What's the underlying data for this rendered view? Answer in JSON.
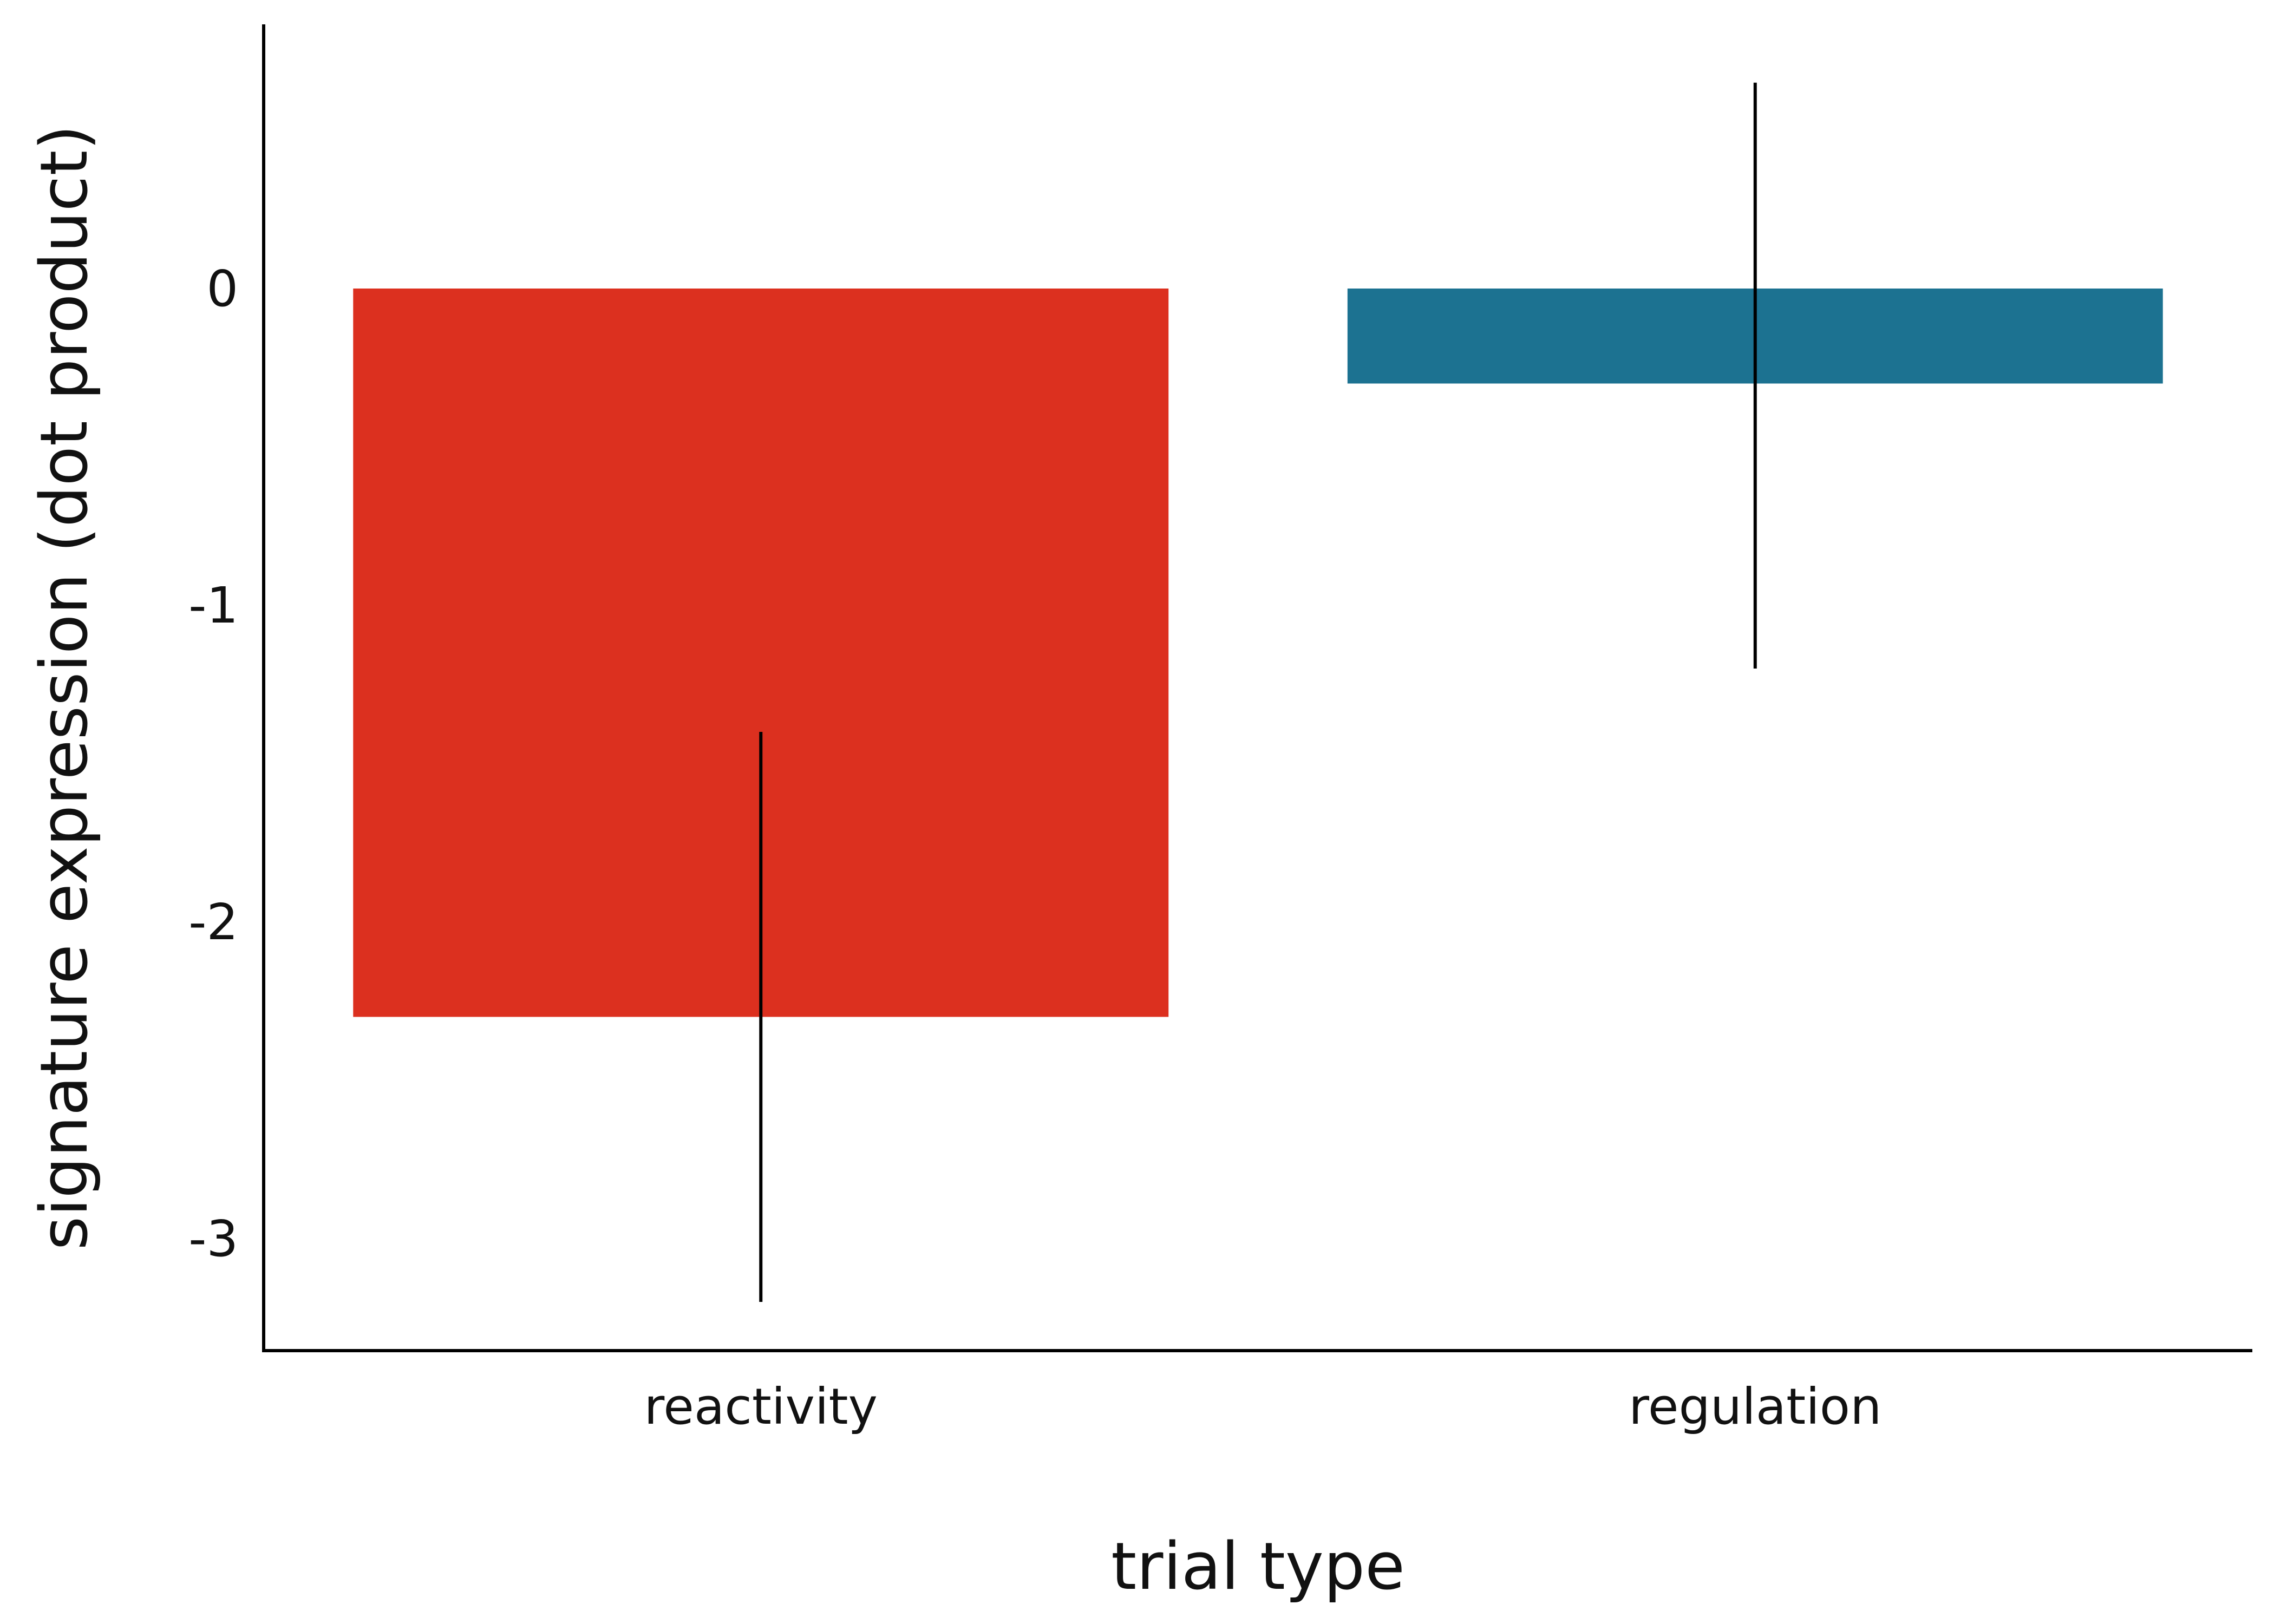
{
  "chart_data": {
    "type": "bar",
    "title": "",
    "xlabel": "trial type",
    "ylabel": "signature expression (dot product)",
    "categories": [
      "reactivity",
      "regulation"
    ],
    "values": [
      -2.3,
      -0.3
    ],
    "error_bars": [
      {
        "low": -3.2,
        "high": -1.4
      },
      {
        "low": -1.2,
        "high": 0.65
      }
    ],
    "colors": [
      "#dc301f",
      "#1c7291"
    ],
    "ylim": [
      -3.35,
      0.85
    ],
    "yticks": [
      0,
      -1,
      -2,
      -3
    ],
    "grid": false,
    "legend": "none"
  }
}
